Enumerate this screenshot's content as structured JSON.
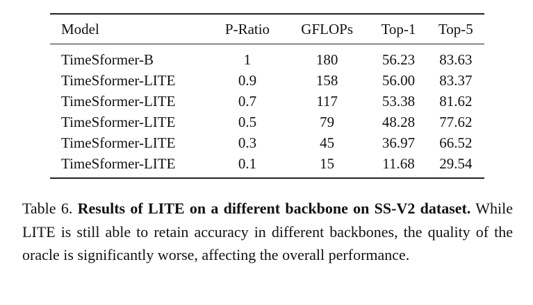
{
  "table": {
    "header": [
      "Model",
      "P-Ratio",
      "GFLOPs",
      "Top-1",
      "Top-5"
    ],
    "rows": [
      [
        "TimeSformer-B",
        "1",
        "180",
        "56.23",
        "83.63"
      ],
      [
        "TimeSformer-LITE",
        "0.9",
        "158",
        "56.00",
        "83.37"
      ],
      [
        "TimeSformer-LITE",
        "0.7",
        "117",
        "53.38",
        "81.62"
      ],
      [
        "TimeSformer-LITE",
        "0.5",
        "79",
        "48.28",
        "77.62"
      ],
      [
        "TimeSformer-LITE",
        "0.3",
        "45",
        "36.97",
        "66.52"
      ],
      [
        "TimeSformer-LITE",
        "0.1",
        "15",
        "11.68",
        "29.54"
      ]
    ]
  },
  "caption": {
    "label": "Table 6.",
    "bold": "Results of LITE on a different backbone on SS-V2 dataset.",
    "text": "While LITE is still able to retain accuracy in different backbones, the quality of the oracle is significantly worse, affecting the overall performance."
  }
}
